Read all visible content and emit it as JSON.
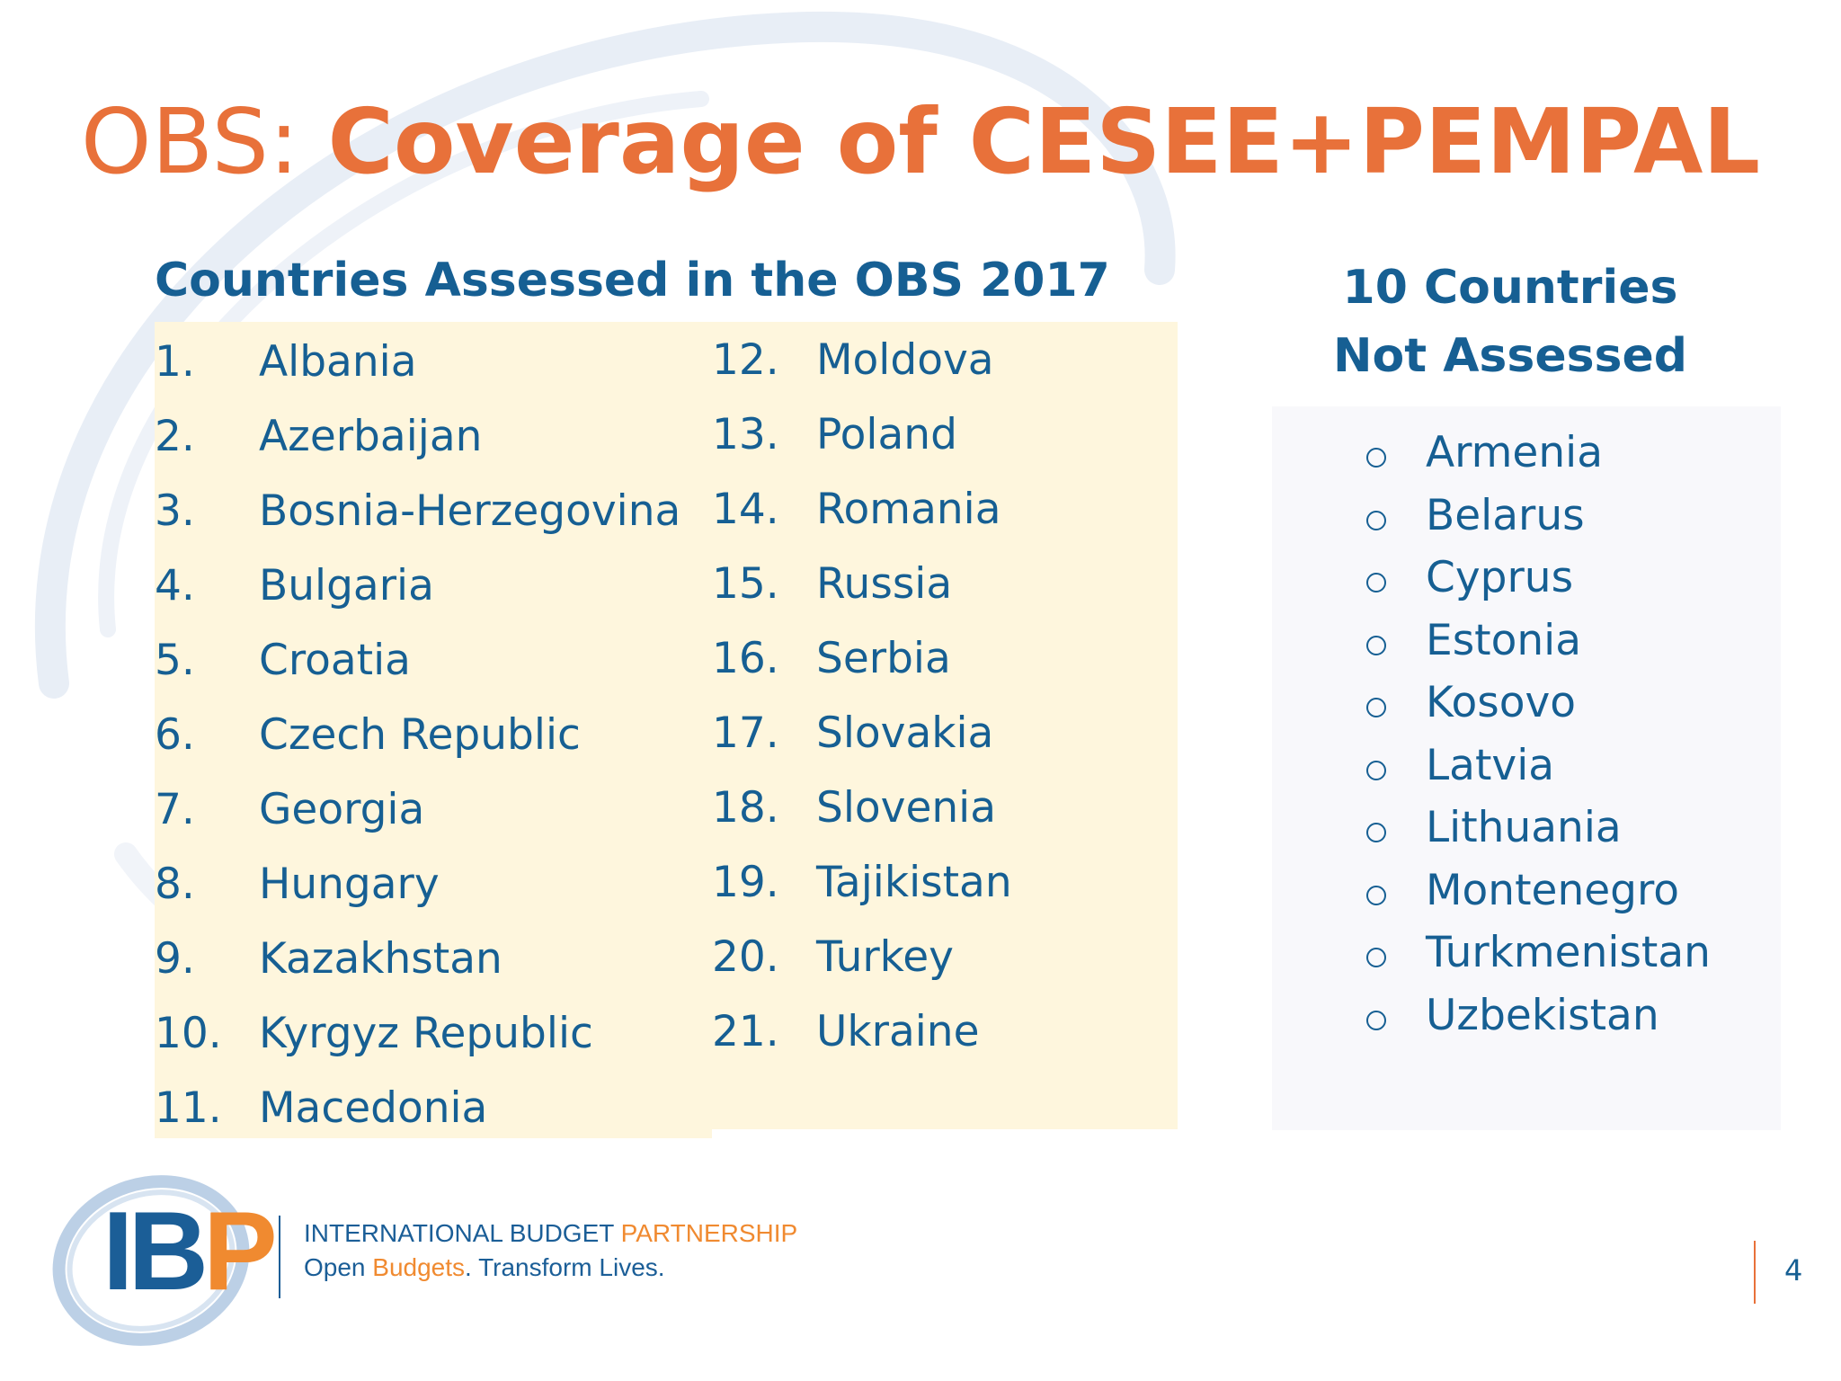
{
  "slide": {
    "title_prefix": "OBS:",
    "title_main": "Coverage of CESEE+PEMPAL",
    "page_number": "4"
  },
  "assessed": {
    "heading": "Countries Assessed in the OBS 2017",
    "column_a": [
      {
        "num": "1.",
        "name": "Albania"
      },
      {
        "num": "2.",
        "name": "Azerbaijan"
      },
      {
        "num": "3.",
        "name": "Bosnia-Herzegovina"
      },
      {
        "num": "4.",
        "name": "Bulgaria"
      },
      {
        "num": "5.",
        "name": "Croatia"
      },
      {
        "num": "6.",
        "name": "Czech Republic"
      },
      {
        "num": "7.",
        "name": "Georgia"
      },
      {
        "num": "8.",
        "name": "Hungary"
      },
      {
        "num": "9.",
        "name": "Kazakhstan"
      },
      {
        "num": "10.",
        "name": "Kyrgyz Republic"
      },
      {
        "num": "11.",
        "name": "Macedonia"
      }
    ],
    "column_b": [
      {
        "num": "12.",
        "name": "Moldova"
      },
      {
        "num": "13.",
        "name": "Poland"
      },
      {
        "num": "14.",
        "name": "Romania"
      },
      {
        "num": "15.",
        "name": "Russia"
      },
      {
        "num": "16.",
        "name": "Serbia"
      },
      {
        "num": "17.",
        "name": "Slovakia"
      },
      {
        "num": "18.",
        "name": "Slovenia"
      },
      {
        "num": "19.",
        "name": "Tajikistan"
      },
      {
        "num": "20.",
        "name": "Turkey"
      },
      {
        "num": "21.",
        "name": "Ukraine"
      }
    ]
  },
  "not_assessed": {
    "heading_line1": "10 Countries",
    "heading_line2": "Not Assessed",
    "items": [
      "Armenia",
      "Belarus",
      "Cyprus",
      "Estonia",
      "Kosovo",
      "Latvia",
      "Lithuania",
      "Montenegro",
      "Turkmenistan",
      "Uzbekistan"
    ]
  },
  "logo": {
    "mark_ib": "IB",
    "mark_p": "P",
    "name_main": "INTERNATIONAL BUDGET ",
    "name_accent": "PARTNERSHIP",
    "tagline_1": "Open ",
    "tagline_accent": "Budgets",
    "tagline_2": ". Transform Lives."
  },
  "colors": {
    "accent_orange": "#e8713a",
    "text_blue": "#165f93",
    "panel_cream": "#fef6dd",
    "panel_grey": "#f8f8fb"
  }
}
